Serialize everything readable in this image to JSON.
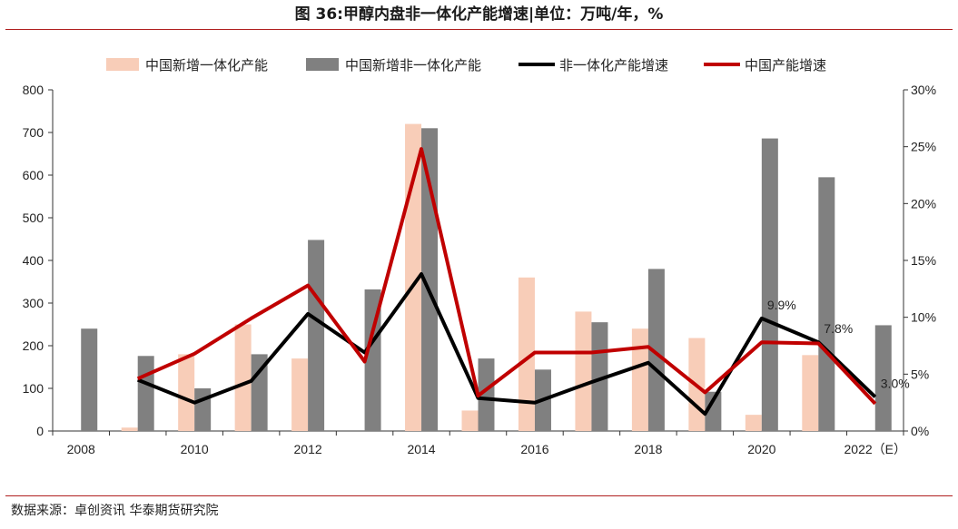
{
  "title": "图 36:甲醇内盘非一体化产能增速|单位：万吨/年，%",
  "source": "数据来源：卓创资讯 华泰期货研究院",
  "colors": {
    "new_integrated": "#f8cdb8",
    "new_non_integrated": "#808080",
    "non_integrated_growth": "#000000",
    "china_growth": "#c00000"
  },
  "chart_data": {
    "type": "bar",
    "categories": [
      "2008",
      "2009",
      "2010",
      "2011",
      "2012",
      "2013",
      "2014",
      "2015",
      "2016",
      "2017",
      "2018",
      "2019",
      "2020",
      "2021",
      "2022（E）"
    ],
    "x_tick_labels": [
      "2008",
      "",
      "2010",
      "",
      "2012",
      "",
      "2014",
      "",
      "2016",
      "",
      "2018",
      "",
      "2020",
      "",
      "2022（E）"
    ],
    "left_axis": {
      "ylim": [
        0,
        800
      ],
      "ticks": [
        "0",
        "100",
        "200",
        "300",
        "400",
        "500",
        "600",
        "700",
        "800"
      ]
    },
    "right_axis": {
      "ylim": [
        0,
        30
      ],
      "ticks": [
        "0%",
        "5%",
        "10%",
        "15%",
        "20%",
        "25%",
        "30%"
      ]
    },
    "legend_position": "top",
    "series": [
      {
        "name": "中国新增一体化产能",
        "kind": "bar",
        "axis": "left",
        "color": "#f8cdb8",
        "values": [
          0,
          8,
          180,
          250,
          170,
          0,
          720,
          48,
          360,
          280,
          240,
          218,
          38,
          178,
          0
        ]
      },
      {
        "name": "中国新增非一体化产能",
        "kind": "bar",
        "axis": "left",
        "color": "#808080",
        "values": [
          240,
          176,
          100,
          180,
          448,
          332,
          710,
          170,
          144,
          255,
          380,
          92,
          686,
          595,
          248
        ]
      },
      {
        "name": "非一体化产能增速",
        "kind": "line",
        "axis": "right",
        "color": "#000000",
        "values": [
          null,
          4.5,
          2.5,
          4.4,
          10.3,
          6.9,
          13.8,
          2.9,
          2.5,
          4.3,
          6.0,
          1.5,
          9.9,
          7.8,
          3.0
        ]
      },
      {
        "name": "中国产能增速",
        "kind": "line",
        "axis": "right",
        "color": "#c00000",
        "values": [
          null,
          4.6,
          6.8,
          9.9,
          12.8,
          6.1,
          24.8,
          3.1,
          6.9,
          6.9,
          7.4,
          3.4,
          7.8,
          7.7,
          2.4
        ]
      }
    ],
    "annotations": [
      {
        "text": "9.9%",
        "category": "2020",
        "value": 9.9,
        "axis": "right"
      },
      {
        "text": "7.8%",
        "category": "2021",
        "value": 7.8,
        "axis": "right"
      },
      {
        "text": "3.0%",
        "category": "2022（E）",
        "value": 3.0,
        "axis": "right"
      }
    ]
  }
}
